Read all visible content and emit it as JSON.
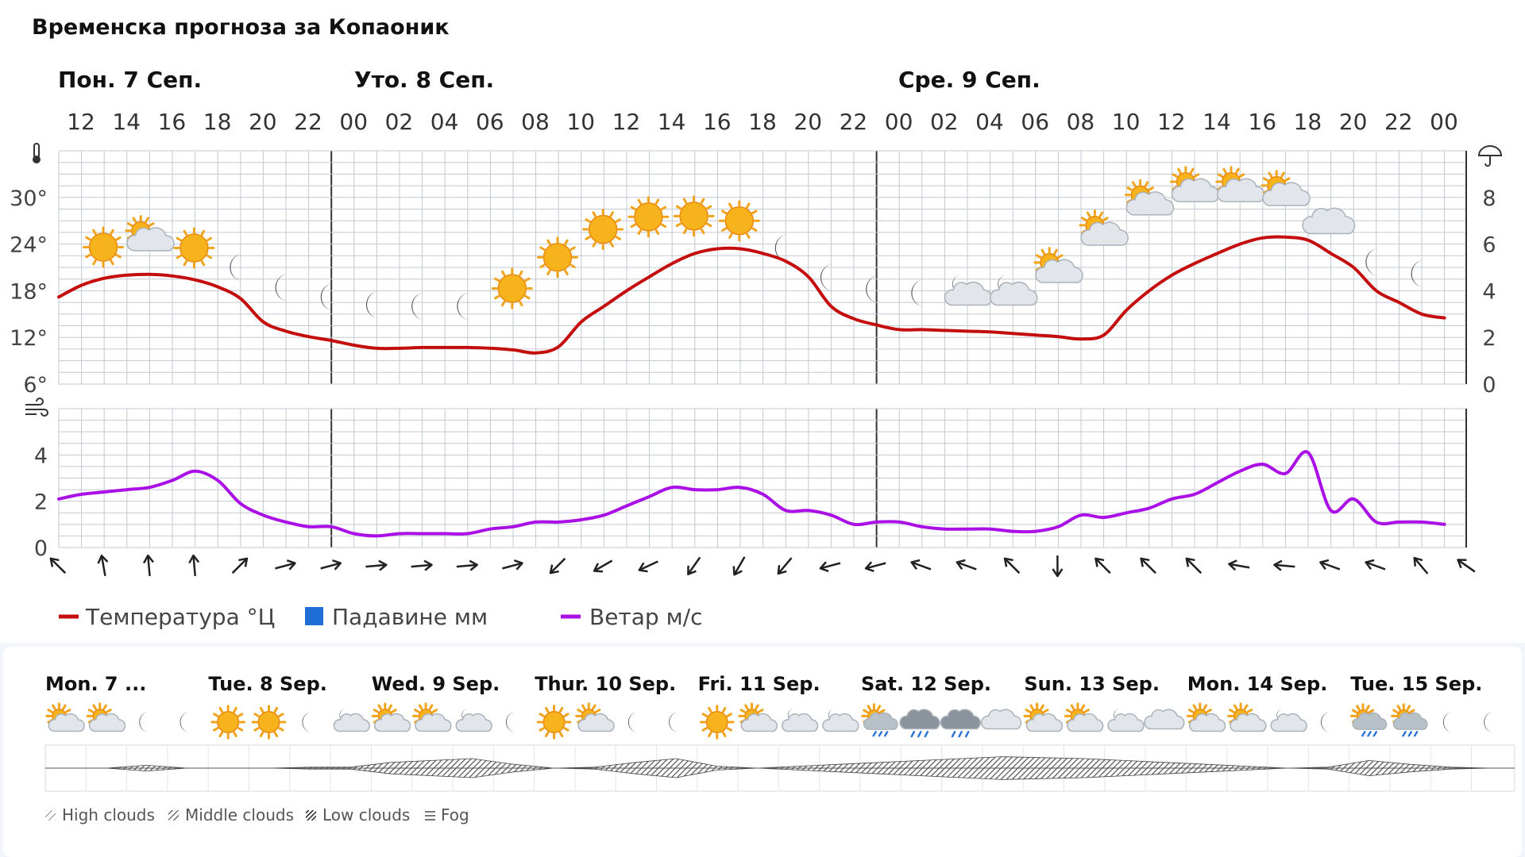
{
  "page_title": "Временска прогноза за Копаоник",
  "day_headers": [
    "Пон. 7 Сеп.",
    "Уто. 8 Сеп.",
    "Сре. 9 Сеп."
  ],
  "hour_labels": [
    "12",
    "14",
    "16",
    "18",
    "20",
    "22",
    "00",
    "02",
    "04",
    "06",
    "08",
    "10",
    "12",
    "14",
    "16",
    "18",
    "20",
    "22",
    "00",
    "02",
    "04",
    "06",
    "08",
    "10",
    "12",
    "14",
    "16",
    "18",
    "20",
    "22",
    "00"
  ],
  "legend": {
    "temperature": "Температура °Ц",
    "precipitation": "Падавине мм",
    "wind": "Ветар м/с"
  },
  "colors": {
    "temperature": "#c40e0e",
    "precipitation": "#1f6fd6",
    "wind": "#aa10e6",
    "grid": "#c3c9d0",
    "day_divider": "#333333"
  },
  "icons": {
    "thermometer": "thermometer-icon",
    "umbrella": "umbrella-icon",
    "wind": "wind-icon"
  },
  "chart_data": [
    {
      "type": "line",
      "name": "temperature-precipitation",
      "x_hours": [
        "12",
        "13",
        "14",
        "15",
        "16",
        "17",
        "18",
        "19",
        "20",
        "21",
        "22",
        "23",
        "00",
        "01",
        "02",
        "03",
        "04",
        "05",
        "06",
        "07",
        "08",
        "09",
        "10",
        "11",
        "12",
        "13",
        "14",
        "15",
        "16",
        "17",
        "18",
        "19",
        "20",
        "21",
        "22",
        "23",
        "00",
        "01",
        "02",
        "03",
        "04",
        "05",
        "06",
        "07",
        "08",
        "09",
        "10",
        "11",
        "12",
        "13",
        "14",
        "15",
        "16",
        "17",
        "18",
        "19",
        "20",
        "21",
        "22",
        "23",
        "00",
        "01"
      ],
      "series": [
        {
          "name": "Температура °Ц",
          "axis": "left",
          "values": [
            17.2,
            18.7,
            19.6,
            20.0,
            20.1,
            19.9,
            19.4,
            18.5,
            17.0,
            14.0,
            12.8,
            12.1,
            11.6,
            11.0,
            10.6,
            10.6,
            10.7,
            10.7,
            10.7,
            10.6,
            10.4,
            10.0,
            10.8,
            14.0,
            16.0,
            18.0,
            19.8,
            21.5,
            22.8,
            23.4,
            23.4,
            22.8,
            21.8,
            19.8,
            16.0,
            14.4,
            13.6,
            13.0,
            13.0,
            12.9,
            12.8,
            12.7,
            12.5,
            12.3,
            12.1,
            11.8,
            12.3,
            15.5,
            18.0,
            20.0,
            21.5,
            22.8,
            24.0,
            24.8,
            24.9,
            24.5,
            22.8,
            21.0,
            18.0,
            16.5,
            15.0,
            14.5
          ]
        },
        {
          "name": "Падавине мм",
          "axis": "right",
          "values": []
        }
      ],
      "y_ticks_left": [
        "6°",
        "12°",
        "18°",
        "24°",
        "30°"
      ],
      "y_ticks_right": [
        "0",
        "2",
        "4",
        "6",
        "8"
      ],
      "ylim_left": [
        6,
        36
      ],
      "ylim_right": [
        0,
        10
      ],
      "weather_icons": [
        "sun",
        "sun-cloud",
        "sun",
        "moon",
        "moon",
        "moon",
        "moon",
        "moon",
        "moon",
        "sun",
        "sun",
        "sun",
        "sun",
        "sun",
        "sun",
        "moon",
        "moon",
        "moon",
        "moon",
        "moon-cloud",
        "moon-cloud",
        "sun-cloud",
        "sun-cloud",
        "sun-cloud",
        "sun-cloud",
        "sun-cloud",
        "sun-cloud",
        "cloud",
        "moon",
        "moon"
      ],
      "weather_icon_temps": [
        23.6,
        24.7,
        23.5,
        21.0,
        18.4,
        17.2,
        16.2,
        16.0,
        16.0,
        18.3,
        22.3,
        25.9,
        27.5,
        27.6,
        27.0,
        23.5,
        19.7,
        18.2,
        17.7,
        17.7,
        17.7,
        20.6,
        25.4,
        29.3,
        31.0,
        31.0,
        30.5,
        26.5,
        21.7,
        20.2
      ]
    },
    {
      "type": "line",
      "name": "wind",
      "x_hours": [
        "12",
        "13",
        "14",
        "15",
        "16",
        "17",
        "18",
        "19",
        "20",
        "21",
        "22",
        "23",
        "00",
        "01",
        "02",
        "03",
        "04",
        "05",
        "06",
        "07",
        "08",
        "09",
        "10",
        "11",
        "12",
        "13",
        "14",
        "15",
        "16",
        "17",
        "18",
        "19",
        "20",
        "21",
        "22",
        "23",
        "00",
        "01",
        "02",
        "03",
        "04",
        "05",
        "06",
        "07",
        "08",
        "09",
        "10",
        "11",
        "12",
        "13",
        "14",
        "15",
        "16",
        "17",
        "18",
        "19",
        "20",
        "21",
        "22",
        "23",
        "00",
        "01"
      ],
      "series": [
        {
          "name": "Ветар м/с",
          "values": [
            2.1,
            2.3,
            2.4,
            2.5,
            2.6,
            2.9,
            3.3,
            2.9,
            1.9,
            1.4,
            1.1,
            0.9,
            0.9,
            0.6,
            0.5,
            0.6,
            0.6,
            0.6,
            0.6,
            0.8,
            0.9,
            1.1,
            1.1,
            1.2,
            1.4,
            1.8,
            2.2,
            2.6,
            2.5,
            2.5,
            2.6,
            2.3,
            1.6,
            1.6,
            1.4,
            1.0,
            1.1,
            1.1,
            0.9,
            0.8,
            0.8,
            0.8,
            0.7,
            0.7,
            0.9,
            1.4,
            1.3,
            1.5,
            1.7,
            2.1,
            2.3,
            2.8,
            3.3,
            3.6,
            3.2,
            4.1,
            1.6,
            2.1,
            1.1,
            1.1,
            1.1,
            1.0
          ]
        }
      ],
      "y_ticks": [
        "0",
        "2",
        "4"
      ],
      "ylim": [
        0,
        6
      ],
      "wind_arrow_angles_deg": [
        135,
        170,
        175,
        175,
        225,
        255,
        255,
        265,
        265,
        265,
        255,
        45,
        60,
        65,
        35,
        30,
        40,
        75,
        75,
        110,
        110,
        135,
        0,
        135,
        135,
        135,
        100,
        95,
        110,
        110,
        140,
        125
      ]
    },
    {
      "type": "area",
      "name": "cloud-layers",
      "day_headers": [
        "Mon. 7 ...",
        "Tue. 8 Sep.",
        "Wed. 9 Sep.",
        "Thur. 10 Sep.",
        "Fri. 11 Sep.",
        "Sat. 12 Sep.",
        "Sun. 13 Sep.",
        "Mon. 14 Sep.",
        "Tue. 15 Sep."
      ],
      "weather_icons": [
        "sun-cloud",
        "sun-cloud",
        "moon",
        "moon",
        "sun",
        "sun",
        "moon",
        "moon-cloud",
        "sun-cloud",
        "sun-cloud",
        "moon-cloud",
        "moon",
        "sun",
        "sun-cloud",
        "moon",
        "moon",
        "sun",
        "sun-cloud",
        "moon-cloud",
        "moon-cloud",
        "sun-rain",
        "cloud-rain",
        "cloud-rain",
        "cloud",
        "sun-cloud",
        "sun-cloud",
        "moon-cloud",
        "cloud",
        "sun-cloud",
        "sun-cloud",
        "moon-cloud",
        "moon",
        "sun-rain",
        "sun-rain",
        "moon",
        "moon"
      ],
      "legend": [
        "High clouds",
        "Middle clouds",
        "Low clouds",
        "Fog"
      ],
      "cloud_amounts": [
        0.0,
        0.0,
        0.15,
        0.0,
        0.0,
        0.0,
        0.05,
        0.05,
        0.3,
        0.4,
        0.5,
        0.2,
        0.0,
        0.05,
        0.3,
        0.5,
        0.1,
        0.0,
        0.1,
        0.2,
        0.3,
        0.4,
        0.5,
        0.6,
        0.55,
        0.5,
        0.4,
        0.3,
        0.2,
        0.1,
        0.0,
        0.05,
        0.4,
        0.2,
        0.05,
        0.0
      ]
    }
  ]
}
